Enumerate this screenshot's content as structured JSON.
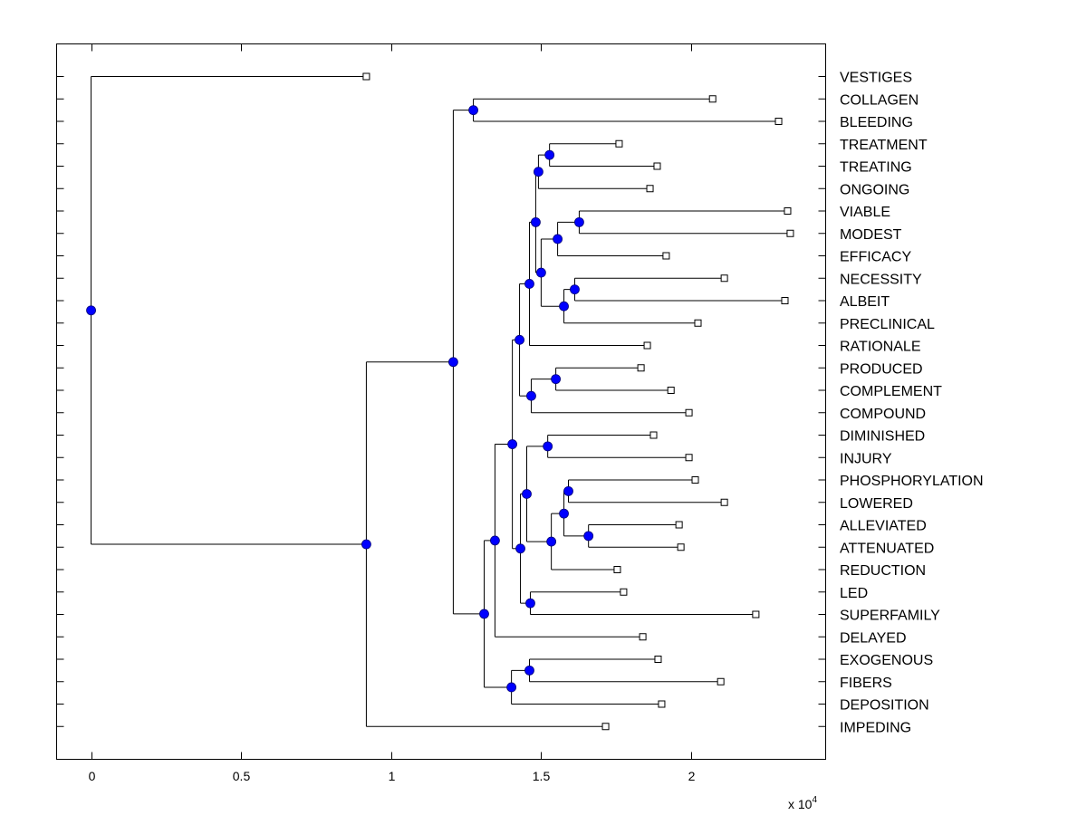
{
  "chart_data": {
    "type": "dendrogram",
    "title": "",
    "xlabel": "",
    "ylabel": "",
    "x_scale_label": "x 10^4",
    "x_scale_base": "x 10",
    "x_scale_exp": "4",
    "xlim": [
      -0.115,
      2.45
    ],
    "xticks": [
      0,
      0.5,
      1,
      1.5,
      2
    ],
    "xtick_labels": [
      "0",
      "0.5",
      "1",
      "1.5",
      "2"
    ],
    "grid": false,
    "leaf_order": [
      "VESTIGES",
      "COLLAGEN",
      "BLEEDING",
      "TREATMENT",
      "TREATING",
      "ONGOING",
      "VIABLE",
      "MODEST",
      "EFFICACY",
      "NECESSITY",
      "ALBEIT",
      "PRECLINICAL",
      "RATIONALE",
      "PRODUCED",
      "COMPLEMENT",
      "COMPOUND",
      "DIMINISHED",
      "INJURY",
      "PHOSPHORYLATION",
      "LOWERED",
      "ALLEVIATED",
      "ATTENUATED",
      "REDUCTION",
      "LED",
      "SUPERFAMILY",
      "DELAYED",
      "EXOGENOUS",
      "FIBERS",
      "DEPOSITION",
      "IMPEDING"
    ],
    "node_color": "#0000ff",
    "tree": {
      "x": 0,
      "children": [
        {
          "leaf": "VESTIGES",
          "x": 0.918
        },
        {
          "x": 0.918,
          "children": [
            {
              "x": 1.208,
              "children": [
                {
                  "x": 1.275,
                  "children": [
                    {
                      "leaf": "COLLAGEN",
                      "x": 2.073
                    },
                    {
                      "leaf": "BLEEDING",
                      "x": 2.293
                    }
                  ]
                },
                {
                  "x": 1.311,
                  "children": [
                    {
                      "x": 1.347,
                      "children": [
                        {
                          "x": 1.405,
                          "children": [
                            {
                              "x": 1.429,
                              "children": [
                                {
                                  "x": 1.462,
                                  "children": [
                                    {
                                      "x": 1.483,
                                      "children": [
                                        {
                                          "x": 1.492,
                                          "children": [
                                            {
                                              "x": 1.529,
                                              "children": [
                                                {
                                                  "leaf": "TREATMENT",
                                                  "x": 1.761
                                                },
                                                {
                                                  "leaf": "TREATING",
                                                  "x": 1.888
                                                }
                                              ]
                                            },
                                            {
                                              "leaf": "ONGOING",
                                              "x": 1.864
                                            }
                                          ]
                                        },
                                        {
                                          "x": 1.501,
                                          "children": [
                                            {
                                              "x": 1.556,
                                              "children": [
                                                {
                                                  "x": 1.628,
                                                  "children": [
                                                    {
                                                      "leaf": "VIABLE",
                                                      "x": 2.323
                                                    },
                                                    {
                                                      "leaf": "MODEST",
                                                      "x": 2.332
                                                    }
                                                  ]
                                                },
                                                {
                                                  "leaf": "EFFICACY",
                                                  "x": 1.918
                                                }
                                              ]
                                            },
                                            {
                                              "x": 1.577,
                                              "children": [
                                                {
                                                  "x": 1.613,
                                                  "children": [
                                                    {
                                                      "leaf": "NECESSITY",
                                                      "x": 2.112
                                                    },
                                                    {
                                                      "leaf": "ALBEIT",
                                                      "x": 2.314
                                                    }
                                                  ]
                                                },
                                                {
                                                  "leaf": "PRECLINICAL",
                                                  "x": 2.024
                                                }
                                              ]
                                            }
                                          ]
                                        }
                                      ]
                                    },
                                    {
                                      "leaf": "RATIONALE",
                                      "x": 1.855
                                    }
                                  ]
                                },
                                {
                                  "x": 1.468,
                                  "children": [
                                    {
                                      "x": 1.55,
                                      "children": [
                                        {
                                          "leaf": "PRODUCED",
                                          "x": 1.834
                                        },
                                        {
                                          "leaf": "COMPLEMENT",
                                          "x": 1.934
                                        }
                                      ]
                                    },
                                    {
                                      "leaf": "COMPOUND",
                                      "x": 1.994
                                    }
                                  ]
                                }
                              ]
                            },
                            {
                              "x": 1.432,
                              "children": [
                                {
                                  "x": 1.453,
                                  "children": [
                                    {
                                      "x": 1.523,
                                      "children": [
                                        {
                                          "leaf": "DIMINISHED",
                                          "x": 1.876
                                        },
                                        {
                                          "leaf": "INJURY",
                                          "x": 1.994
                                        }
                                      ]
                                    },
                                    {
                                      "x": 1.535,
                                      "children": [
                                        {
                                          "x": 1.577,
                                          "children": [
                                            {
                                              "x": 1.592,
                                              "children": [
                                                {
                                                  "leaf": "PHOSPHORYLATION",
                                                  "x": 2.015
                                                },
                                                {
                                                  "leaf": "LOWERED",
                                                  "x": 2.112
                                                }
                                              ]
                                            },
                                            {
                                              "x": 1.659,
                                              "children": [
                                                {
                                                  "leaf": "ALLEVIATED",
                                                  "x": 1.961
                                                },
                                                {
                                                  "leaf": "ATTENUATED",
                                                  "x": 1.967
                                                }
                                              ]
                                            }
                                          ]
                                        },
                                        {
                                          "leaf": "REDUCTION",
                                          "x": 1.755
                                        }
                                      ]
                                    }
                                  ]
                                },
                                {
                                  "x": 1.465,
                                  "children": [
                                    {
                                      "leaf": "LED",
                                      "x": 1.776
                                    },
                                    {
                                      "leaf": "SUPERFAMILY",
                                      "x": 2.217
                                    }
                                  ]
                                }
                              ]
                            }
                          ]
                        },
                        {
                          "leaf": "DELAYED",
                          "x": 1.84
                        }
                      ]
                    },
                    {
                      "x": 1.402,
                      "children": [
                        {
                          "x": 1.462,
                          "children": [
                            {
                              "leaf": "EXOGENOUS",
                              "x": 1.891
                            },
                            {
                              "leaf": "FIBERS",
                              "x": 2.1
                            }
                          ]
                        },
                        {
                          "leaf": "DEPOSITION",
                          "x": 1.903
                        }
                      ]
                    }
                  ]
                }
              ]
            },
            {
              "leaf": "IMPEDING",
              "x": 1.716
            }
          ]
        }
      ]
    }
  }
}
